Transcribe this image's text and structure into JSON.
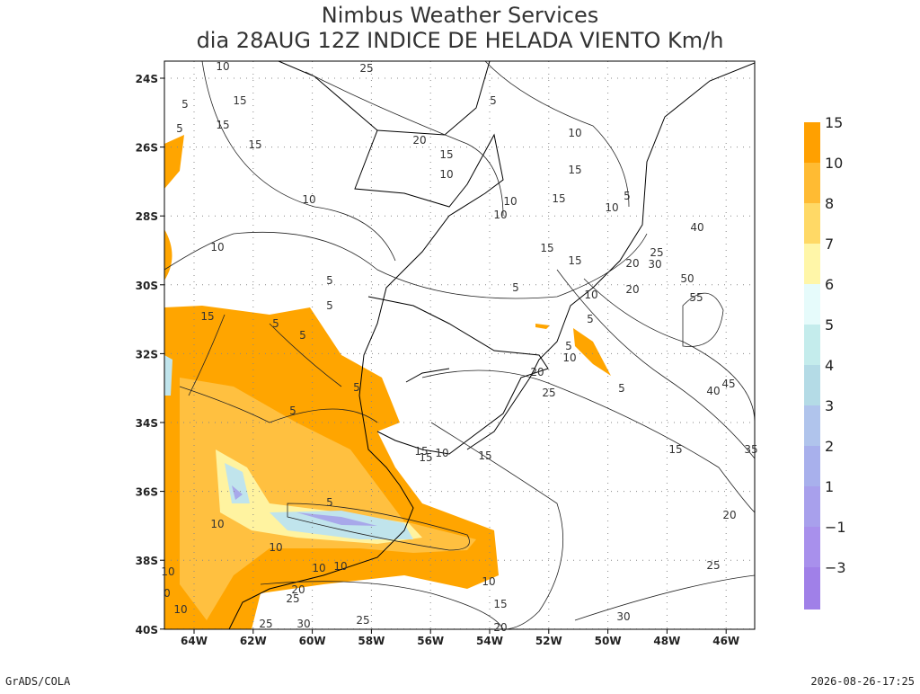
{
  "header": {
    "title": "Nimbus Weather Services",
    "subtitle": "dia 28AUG 12Z INDICE DE HELADA VIENTO Km/h"
  },
  "axes": {
    "lat_labels": [
      "24S",
      "26S",
      "28S",
      "30S",
      "32S",
      "34S",
      "36S",
      "38S",
      "40S"
    ],
    "lon_labels": [
      "64W",
      "62W",
      "60W",
      "58W",
      "56W",
      "54W",
      "52W",
      "50W",
      "48W",
      "46W"
    ]
  },
  "colorbar": {
    "labels": [
      "15",
      "10",
      "8",
      "7",
      "6",
      "5",
      "4",
      "3",
      "2",
      "1",
      "−1",
      "−3"
    ]
  },
  "contour_labels": [
    "10",
    "25",
    "15",
    "15",
    "15",
    "5",
    "5",
    "10",
    "20",
    "15",
    "10",
    "5",
    "10",
    "15",
    "10",
    "10",
    "15",
    "10",
    "5",
    "15",
    "15",
    "10",
    "5",
    "5",
    "5",
    "15",
    "5",
    "5",
    "20",
    "30",
    "25",
    "40",
    "50",
    "55",
    "20",
    "10",
    "5",
    "5",
    "10",
    "20",
    "25",
    "5",
    "40",
    "45",
    "5",
    "5",
    "15",
    "15",
    "10",
    "15",
    "15",
    "35",
    "5",
    "10",
    "10",
    "10",
    "10",
    "10",
    "15",
    "20",
    "25",
    "20",
    "25",
    "10",
    "30",
    "25",
    "25",
    "30",
    "20",
    "10",
    "0"
  ],
  "footer": {
    "left": "GrADS/COLA",
    "right": "2026-08-26-17:25"
  }
}
